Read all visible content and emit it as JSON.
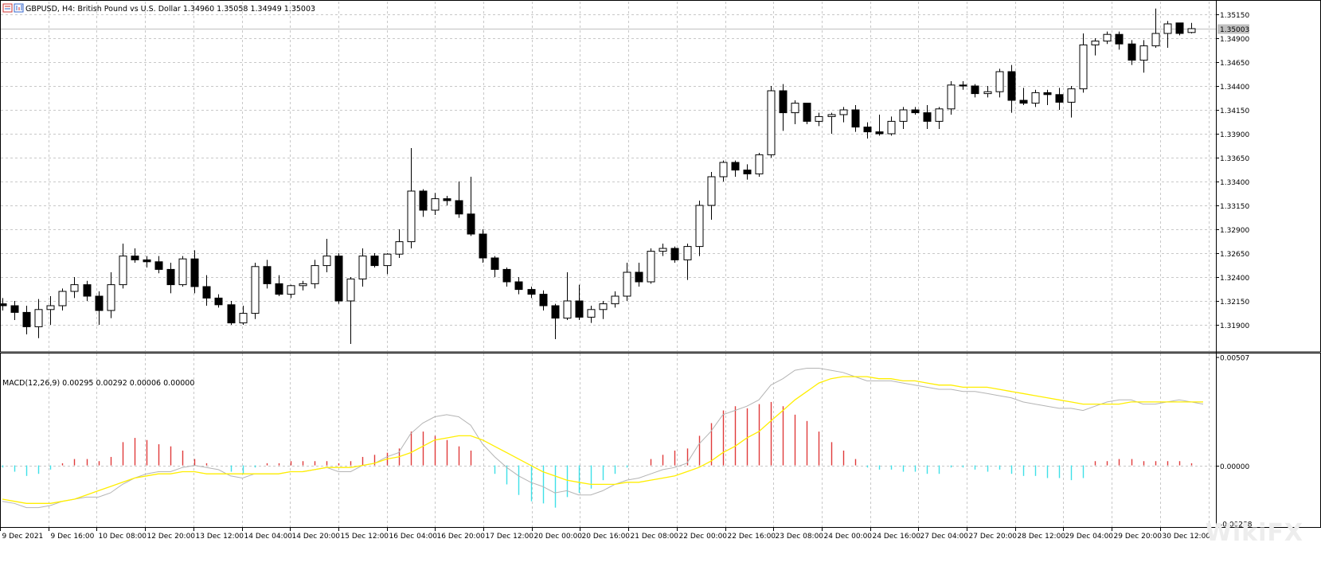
{
  "header": {
    "symbol_line": "GBPUSD, H4:  British Pound vs U.S. Dollar  1.34960 1.35058 1.34949 1.35003",
    "macd_line": "MACD(12,26,9) 0.00295 0.00292 0.00006 0.00000"
  },
  "watermark": "WikiFX",
  "colors": {
    "background": "#ffffff",
    "grid": "#c8c8c8",
    "candle": "#000000",
    "hist_positive": "#e03a3a",
    "hist_negative": "#3fe0e8",
    "macd_line": "#b4b4b4",
    "signal_line": "#ffee00",
    "price_line": "#c0c0c0",
    "price_tag": "#c0c0c0"
  },
  "chart_data": [
    {
      "type": "candlestick",
      "symbol": "GBPUSD",
      "timeframe": "H4",
      "ylim": [
        1.317,
        1.3525
      ],
      "y_ticks": [
        "1.35150",
        "1.34900",
        "1.34650",
        "1.34400",
        "1.34150",
        "1.33900",
        "1.33650",
        "1.33400",
        "1.33150",
        "1.32900",
        "1.32650",
        "1.32400",
        "1.32150",
        "1.31900"
      ],
      "current_price": "1.35003",
      "x_labels": [
        "9 Dec 2021",
        "9 Dec 16:00",
        "10 Dec 08:00",
        "12 Dec 20:00",
        "13 Dec 12:00",
        "14 Dec 04:00",
        "14 Dec 20:00",
        "15 Dec 12:00",
        "16 Dec 04:00",
        "16 Dec 20:00",
        "17 Dec 12:00",
        "20 Dec 00:00",
        "20 Dec 16:00",
        "21 Dec 08:00",
        "22 Dec 00:00",
        "22 Dec 16:00",
        "23 Dec 08:00",
        "24 Dec 00:00",
        "24 Dec 16:00",
        "27 Dec 04:00",
        "27 Dec 20:00",
        "28 Dec 12:00",
        "29 Dec 04:00",
        "29 Dec 20:00",
        "30 Dec 12:00"
      ],
      "candles": [
        {
          "o": 1.3212,
          "h": 1.3218,
          "l": 1.3205,
          "c": 1.321
        },
        {
          "o": 1.321,
          "h": 1.3215,
          "l": 1.3195,
          "c": 1.3203
        },
        {
          "o": 1.3203,
          "h": 1.321,
          "l": 1.318,
          "c": 1.3188
        },
        {
          "o": 1.3188,
          "h": 1.3217,
          "l": 1.3176,
          "c": 1.3206
        },
        {
          "o": 1.3206,
          "h": 1.322,
          "l": 1.319,
          "c": 1.321
        },
        {
          "o": 1.321,
          "h": 1.3228,
          "l": 1.3205,
          "c": 1.3225
        },
        {
          "o": 1.3225,
          "h": 1.324,
          "l": 1.3218,
          "c": 1.3232
        },
        {
          "o": 1.3232,
          "h": 1.3236,
          "l": 1.3215,
          "c": 1.322
        },
        {
          "o": 1.322,
          "h": 1.3225,
          "l": 1.319,
          "c": 1.3205
        },
        {
          "o": 1.3205,
          "h": 1.3245,
          "l": 1.3197,
          "c": 1.3232
        },
        {
          "o": 1.3232,
          "h": 1.3275,
          "l": 1.3228,
          "c": 1.3262
        },
        {
          "o": 1.3262,
          "h": 1.327,
          "l": 1.3255,
          "c": 1.3258
        },
        {
          "o": 1.3258,
          "h": 1.3262,
          "l": 1.325,
          "c": 1.3256
        },
        {
          "o": 1.3256,
          "h": 1.3262,
          "l": 1.3244,
          "c": 1.3248
        },
        {
          "o": 1.3248,
          "h": 1.3255,
          "l": 1.3223,
          "c": 1.3232
        },
        {
          "o": 1.3232,
          "h": 1.3262,
          "l": 1.323,
          "c": 1.3259
        },
        {
          "o": 1.3259,
          "h": 1.3268,
          "l": 1.3223,
          "c": 1.323
        },
        {
          "o": 1.323,
          "h": 1.3242,
          "l": 1.321,
          "c": 1.3218
        },
        {
          "o": 1.3218,
          "h": 1.3222,
          "l": 1.3208,
          "c": 1.3211
        },
        {
          "o": 1.3211,
          "h": 1.3215,
          "l": 1.319,
          "c": 1.3192
        },
        {
          "o": 1.3192,
          "h": 1.321,
          "l": 1.319,
          "c": 1.3202
        },
        {
          "o": 1.3202,
          "h": 1.3255,
          "l": 1.3196,
          "c": 1.3251
        },
        {
          "o": 1.3251,
          "h": 1.3258,
          "l": 1.3228,
          "c": 1.3233
        },
        {
          "o": 1.3233,
          "h": 1.3242,
          "l": 1.322,
          "c": 1.3222
        },
        {
          "o": 1.3222,
          "h": 1.3232,
          "l": 1.3218,
          "c": 1.3231
        },
        {
          "o": 1.3231,
          "h": 1.3236,
          "l": 1.3226,
          "c": 1.3233
        },
        {
          "o": 1.3233,
          "h": 1.3258,
          "l": 1.3228,
          "c": 1.3252
        },
        {
          "o": 1.3252,
          "h": 1.328,
          "l": 1.3245,
          "c": 1.3262
        },
        {
          "o": 1.3262,
          "h": 1.3265,
          "l": 1.3212,
          "c": 1.3215
        },
        {
          "o": 1.3215,
          "h": 1.324,
          "l": 1.317,
          "c": 1.3238
        },
        {
          "o": 1.3238,
          "h": 1.327,
          "l": 1.323,
          "c": 1.3262
        },
        {
          "o": 1.3262,
          "h": 1.3265,
          "l": 1.325,
          "c": 1.3252
        },
        {
          "o": 1.3252,
          "h": 1.3265,
          "l": 1.3243,
          "c": 1.3264
        },
        {
          "o": 1.3264,
          "h": 1.329,
          "l": 1.326,
          "c": 1.3277
        },
        {
          "o": 1.3277,
          "h": 1.3375,
          "l": 1.327,
          "c": 1.333
        },
        {
          "o": 1.333,
          "h": 1.3332,
          "l": 1.3303,
          "c": 1.331
        },
        {
          "o": 1.331,
          "h": 1.3328,
          "l": 1.3305,
          "c": 1.3322
        },
        {
          "o": 1.3322,
          "h": 1.3325,
          "l": 1.3315,
          "c": 1.332
        },
        {
          "o": 1.332,
          "h": 1.334,
          "l": 1.3302,
          "c": 1.3306
        },
        {
          "o": 1.3306,
          "h": 1.3345,
          "l": 1.3283,
          "c": 1.3285
        },
        {
          "o": 1.3285,
          "h": 1.329,
          "l": 1.3255,
          "c": 1.326
        },
        {
          "o": 1.326,
          "h": 1.3262,
          "l": 1.324,
          "c": 1.3248
        },
        {
          "o": 1.3248,
          "h": 1.325,
          "l": 1.323,
          "c": 1.3235
        },
        {
          "o": 1.3235,
          "h": 1.324,
          "l": 1.3222,
          "c": 1.3227
        },
        {
          "o": 1.3227,
          "h": 1.323,
          "l": 1.3218,
          "c": 1.3222
        },
        {
          "o": 1.3222,
          "h": 1.3226,
          "l": 1.3205,
          "c": 1.321
        },
        {
          "o": 1.321,
          "h": 1.3212,
          "l": 1.3175,
          "c": 1.3197
        },
        {
          "o": 1.3197,
          "h": 1.3245,
          "l": 1.3195,
          "c": 1.3215
        },
        {
          "o": 1.3215,
          "h": 1.3232,
          "l": 1.3195,
          "c": 1.3198
        },
        {
          "o": 1.3198,
          "h": 1.321,
          "l": 1.3192,
          "c": 1.3206
        },
        {
          "o": 1.3206,
          "h": 1.3215,
          "l": 1.3196,
          "c": 1.3212
        },
        {
          "o": 1.3212,
          "h": 1.3225,
          "l": 1.3208,
          "c": 1.322
        },
        {
          "o": 1.322,
          "h": 1.3255,
          "l": 1.3215,
          "c": 1.3245
        },
        {
          "o": 1.3245,
          "h": 1.3255,
          "l": 1.323,
          "c": 1.3235
        },
        {
          "o": 1.3235,
          "h": 1.327,
          "l": 1.3233,
          "c": 1.3267
        },
        {
          "o": 1.3267,
          "h": 1.3275,
          "l": 1.3262,
          "c": 1.327
        },
        {
          "o": 1.327,
          "h": 1.3272,
          "l": 1.3255,
          "c": 1.3258
        },
        {
          "o": 1.3258,
          "h": 1.3275,
          "l": 1.3237,
          "c": 1.3272
        },
        {
          "o": 1.3272,
          "h": 1.332,
          "l": 1.3262,
          "c": 1.3315
        },
        {
          "o": 1.3315,
          "h": 1.335,
          "l": 1.33,
          "c": 1.3345
        },
        {
          "o": 1.3345,
          "h": 1.3362,
          "l": 1.334,
          "c": 1.336
        },
        {
          "o": 1.336,
          "h": 1.3362,
          "l": 1.3345,
          "c": 1.3352
        },
        {
          "o": 1.3352,
          "h": 1.3358,
          "l": 1.3342,
          "c": 1.3348
        },
        {
          "o": 1.3348,
          "h": 1.337,
          "l": 1.3345,
          "c": 1.3368
        },
        {
          "o": 1.3368,
          "h": 1.344,
          "l": 1.3365,
          "c": 1.3435
        },
        {
          "o": 1.3435,
          "h": 1.3442,
          "l": 1.3393,
          "c": 1.3412
        },
        {
          "o": 1.3412,
          "h": 1.3425,
          "l": 1.34,
          "c": 1.3422
        },
        {
          "o": 1.3422,
          "h": 1.3422,
          "l": 1.34,
          "c": 1.3403
        },
        {
          "o": 1.3403,
          "h": 1.3412,
          "l": 1.3398,
          "c": 1.3408
        },
        {
          "o": 1.3408,
          "h": 1.3412,
          "l": 1.339,
          "c": 1.341
        },
        {
          "o": 1.341,
          "h": 1.3418,
          "l": 1.3402,
          "c": 1.3415
        },
        {
          "o": 1.3415,
          "h": 1.342,
          "l": 1.3392,
          "c": 1.3397
        },
        {
          "o": 1.3397,
          "h": 1.3402,
          "l": 1.3385,
          "c": 1.3392
        },
        {
          "o": 1.3392,
          "h": 1.341,
          "l": 1.3388,
          "c": 1.339
        },
        {
          "o": 1.339,
          "h": 1.3408,
          "l": 1.3388,
          "c": 1.3403
        },
        {
          "o": 1.3403,
          "h": 1.3418,
          "l": 1.3395,
          "c": 1.3415
        },
        {
          "o": 1.3415,
          "h": 1.3418,
          "l": 1.341,
          "c": 1.3412
        },
        {
          "o": 1.3412,
          "h": 1.342,
          "l": 1.3395,
          "c": 1.3403
        },
        {
          "o": 1.3403,
          "h": 1.3418,
          "l": 1.3395,
          "c": 1.3416
        },
        {
          "o": 1.3416,
          "h": 1.3445,
          "l": 1.341,
          "c": 1.3441
        },
        {
          "o": 1.3441,
          "h": 1.3445,
          "l": 1.3436,
          "c": 1.344
        },
        {
          "o": 1.344,
          "h": 1.3442,
          "l": 1.3428,
          "c": 1.3432
        },
        {
          "o": 1.3432,
          "h": 1.344,
          "l": 1.3428,
          "c": 1.3434
        },
        {
          "o": 1.3434,
          "h": 1.3458,
          "l": 1.3428,
          "c": 1.3455
        },
        {
          "o": 1.3455,
          "h": 1.3462,
          "l": 1.3412,
          "c": 1.3425
        },
        {
          "o": 1.3425,
          "h": 1.3438,
          "l": 1.342,
          "c": 1.3422
        },
        {
          "o": 1.3422,
          "h": 1.3436,
          "l": 1.3418,
          "c": 1.3433
        },
        {
          "o": 1.3433,
          "h": 1.3436,
          "l": 1.342,
          "c": 1.3431
        },
        {
          "o": 1.3431,
          "h": 1.3438,
          "l": 1.3415,
          "c": 1.3423
        },
        {
          "o": 1.3423,
          "h": 1.344,
          "l": 1.3407,
          "c": 1.3437
        },
        {
          "o": 1.3437,
          "h": 1.3495,
          "l": 1.3433,
          "c": 1.3483
        },
        {
          "o": 1.3483,
          "h": 1.349,
          "l": 1.3472,
          "c": 1.3487
        },
        {
          "o": 1.3487,
          "h": 1.3497,
          "l": 1.3484,
          "c": 1.3494
        },
        {
          "o": 1.3494,
          "h": 1.3497,
          "l": 1.3478,
          "c": 1.3484
        },
        {
          "o": 1.3484,
          "h": 1.3488,
          "l": 1.3462,
          "c": 1.3467
        },
        {
          "o": 1.3467,
          "h": 1.3488,
          "l": 1.3454,
          "c": 1.3482
        },
        {
          "o": 1.3482,
          "h": 1.3521,
          "l": 1.348,
          "c": 1.3495
        },
        {
          "o": 1.3495,
          "h": 1.3508,
          "l": 1.348,
          "c": 1.3505
        },
        {
          "o": 1.3506,
          "h": 1.3506,
          "l": 1.3493,
          "c": 1.3495
        },
        {
          "o": 1.3496,
          "h": 1.3506,
          "l": 1.3495,
          "c": 1.35
        }
      ]
    },
    {
      "type": "macd",
      "params": "MACD(12,26,9)",
      "ylim": [
        -0.00288,
        0.00507
      ],
      "y_ticks": [
        "0.00507",
        "0.00000",
        "-0.00288"
      ],
      "histogram": [
        -0.0001,
        -0.0003,
        -0.0005,
        -0.0004,
        -0.0002,
        0.0001,
        0.0003,
        0.0003,
        0.0002,
        0.0004,
        0.0011,
        0.0013,
        0.0012,
        0.001,
        0.0009,
        0.0007,
        0.0003,
        0.0001,
        0.0,
        -0.0003,
        -0.0004,
        -0.0001,
        0.0001,
        0.0001,
        0.0002,
        0.0002,
        0.0002,
        0.0002,
        0.0001,
        0.0002,
        0.0004,
        0.0005,
        0.0006,
        0.0008,
        0.0016,
        0.0016,
        0.0014,
        0.0012,
        0.0009,
        0.0007,
        0.0,
        -0.0004,
        -0.0009,
        -0.0014,
        -0.0017,
        -0.0018,
        -0.002,
        -0.0015,
        -0.0013,
        -0.0011,
        -0.0007,
        -0.0004,
        -0.0001,
        0.0,
        0.0003,
        0.0005,
        0.0007,
        0.0008,
        0.0014,
        0.002,
        0.0026,
        0.0028,
        0.0027,
        0.0029,
        0.003,
        0.0028,
        0.0024,
        0.0021,
        0.0016,
        0.0011,
        0.0007,
        0.0003,
        -0.0001,
        -0.0002,
        -0.0002,
        -0.0003,
        -0.0003,
        -0.0004,
        -0.0004,
        -0.0001,
        -0.0001,
        -0.0002,
        -0.0003,
        -0.0002,
        -0.0004,
        -0.0005,
        -0.0005,
        -0.0006,
        -0.0006,
        -0.0007,
        -0.0006,
        0.0002,
        0.0002,
        0.0003,
        0.0003,
        0.0002,
        0.0002,
        0.0002,
        0.0002,
        0.0001,
        0.0
      ],
      "macd": [
        -0.0017,
        -0.0018,
        -0.002,
        -0.002,
        -0.0019,
        -0.0017,
        -0.0016,
        -0.0015,
        -0.0015,
        -0.0013,
        -0.0009,
        -0.0006,
        -0.0004,
        -0.0003,
        -0.0003,
        -0.0001,
        0.0,
        -0.0001,
        -0.0002,
        -0.0005,
        -0.0006,
        -0.0004,
        -0.0004,
        -0.0004,
        -0.0003,
        -0.0003,
        -0.0002,
        -0.0001,
        -0.0003,
        -0.0003,
        0.0,
        0.0001,
        0.0004,
        0.0006,
        0.0015,
        0.002,
        0.0023,
        0.0024,
        0.0023,
        0.0019,
        0.001,
        0.0004,
        -0.0001,
        -0.0005,
        -0.0008,
        -0.001,
        -0.0013,
        -0.0012,
        -0.0014,
        -0.0014,
        -0.0012,
        -0.0009,
        -0.0007,
        -0.0006,
        -0.0004,
        -0.0002,
        -0.0001,
        0.0001,
        0.001,
        0.0016,
        0.0024,
        0.0026,
        0.0028,
        0.0031,
        0.0038,
        0.0041,
        0.0045,
        0.0046,
        0.0046,
        0.0045,
        0.0044,
        0.0042,
        0.004,
        0.004,
        0.004,
        0.0039,
        0.0038,
        0.0037,
        0.0036,
        0.0036,
        0.0035,
        0.0035,
        0.0034,
        0.0033,
        0.0032,
        0.003,
        0.0029,
        0.0028,
        0.0027,
        0.0027,
        0.0026,
        0.0028,
        0.003,
        0.0031,
        0.0031,
        0.0029,
        0.0029,
        0.003,
        0.0031,
        0.003,
        0.0029
      ],
      "signal": [
        -0.0016,
        -0.0017,
        -0.0018,
        -0.0018,
        -0.0018,
        -0.0017,
        -0.0016,
        -0.0014,
        -0.0012,
        -0.001,
        -0.0008,
        -0.0006,
        -0.0005,
        -0.0004,
        -0.0004,
        -0.0003,
        -0.0003,
        -0.0004,
        -0.0004,
        -0.0004,
        -0.0004,
        -0.0004,
        -0.0004,
        -0.0004,
        -0.0003,
        -0.0003,
        -0.0002,
        -0.0001,
        -0.0001,
        -0.0001,
        0.0,
        0.0001,
        0.0003,
        0.0004,
        0.0006,
        0.0009,
        0.0012,
        0.0013,
        0.0014,
        0.0014,
        0.0012,
        0.0009,
        0.0006,
        0.0003,
        0.0,
        -0.0003,
        -0.0005,
        -0.0007,
        -0.0008,
        -0.0009,
        -0.0009,
        -0.0009,
        -0.0008,
        -0.0008,
        -0.0007,
        -0.0006,
        -0.0005,
        -0.0003,
        -0.0001,
        0.0002,
        0.0006,
        0.0009,
        0.0013,
        0.0016,
        0.0021,
        0.0026,
        0.0031,
        0.0035,
        0.0039,
        0.0041,
        0.0042,
        0.0042,
        0.0042,
        0.0041,
        0.0041,
        0.004,
        0.004,
        0.0039,
        0.0038,
        0.0038,
        0.0037,
        0.0037,
        0.0037,
        0.0036,
        0.0035,
        0.0034,
        0.0033,
        0.0032,
        0.0031,
        0.003,
        0.0029,
        0.0029,
        0.0029,
        0.0029,
        0.003,
        0.003,
        0.003,
        0.003,
        0.003,
        0.003,
        0.003
      ]
    }
  ]
}
